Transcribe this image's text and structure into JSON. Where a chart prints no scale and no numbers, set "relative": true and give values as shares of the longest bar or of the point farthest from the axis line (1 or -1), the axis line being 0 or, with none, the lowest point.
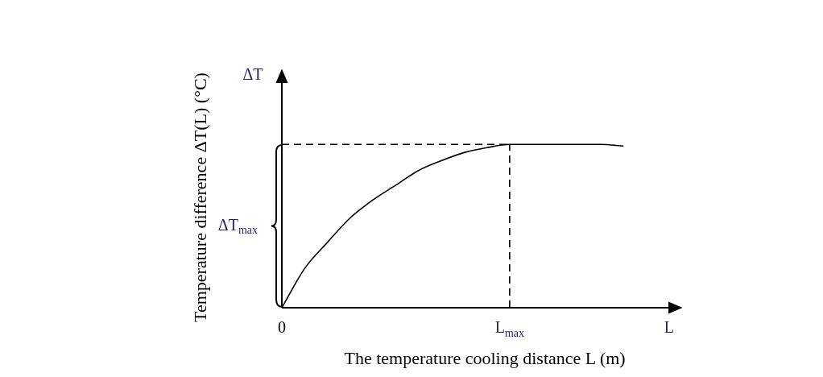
{
  "chart_data": {
    "type": "line",
    "xlabel": "The temperature cooling distance L (m)",
    "ylabel": "Temperature difference ΔT(L) (°C)",
    "relative": true,
    "categories": [
      "0",
      null,
      null,
      null,
      null,
      null,
      null,
      null,
      null,
      null,
      "L$_{max}$",
      null,
      null,
      null,
      null,
      null,
      null,
      "L"
    ],
    "series": [
      {
        "color": "#000000",
        "values": [
          0,
          0.24,
          0.4,
          0.55,
          0.66,
          0.75,
          0.84,
          0.9,
          0.95,
          0.98,
          1,
          1,
          1,
          1,
          1,
          0.99,
          null,
          null
        ]
      }
    ],
    "ref_lines": [
      {
        "axis": "y",
        "value": 1,
        "line_style": "dashed",
        "color": "#000000"
      },
      {
        "axis": "x",
        "value": "L$_{max}$",
        "line_style": "dashed",
        "color": "#000000"
      }
    ],
    "annotations": [
      "ΔT",
      "ΔT$_{max}$"
    ],
    "grid": false,
    "legend": false,
    "marker": "none",
    "line_style": "solid"
  }
}
